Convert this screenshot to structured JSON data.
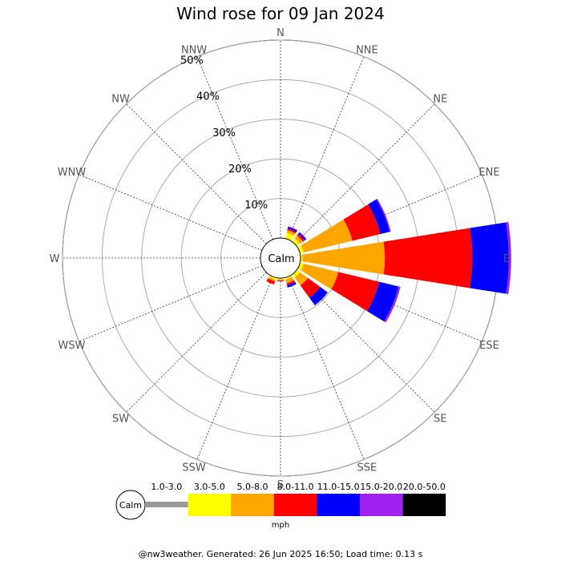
{
  "chart_data": {
    "type": "wind-rose",
    "title": "Wind rose for 09 Jan 2024",
    "directions": [
      "N",
      "NNE",
      "NE",
      "ENE",
      "E",
      "ESE",
      "SE",
      "SSE",
      "S",
      "SSW",
      "SW",
      "WSW",
      "W",
      "WNW",
      "NW",
      "NNW"
    ],
    "ring_values": [
      10,
      20,
      30,
      40,
      50
    ],
    "ring_labels": [
      "10%",
      "20%",
      "30%",
      "40%",
      "50%"
    ],
    "r_max": 50,
    "calm_label": "Calm",
    "speed_bins": [
      {
        "label": "1.0-3.0",
        "color": "#999999"
      },
      {
        "label": "3.0-5.0",
        "color": "#ffff00"
      },
      {
        "label": "5.0-8.0",
        "color": "#ffa500"
      },
      {
        "label": "8.0-11.0",
        "color": "#ff0000"
      },
      {
        "label": "11.0-15.0",
        "color": "#0000ff"
      },
      {
        "label": "15.0-20.0",
        "color": "#a020f0"
      },
      {
        "label": "20.0-50.0",
        "color": "#000000"
      }
    ],
    "cumulative_frequency_percent": {
      "N": [
        0,
        0.0,
        0.0,
        0.0,
        0.0,
        0.0,
        0.0
      ],
      "NNE": [
        0,
        1.5,
        2.2,
        2.6,
        3.0,
        3.2,
        3.2
      ],
      "NE": [
        0,
        1.0,
        2.0,
        2.5,
        2.9,
        3.1,
        3.1
      ],
      "ENE": [
        0,
        1.0,
        13.6,
        20.9,
        23.3,
        23.6,
        23.6
      ],
      "E": [
        0,
        0.5,
        21.3,
        43.4,
        52.6,
        53.2,
        53.2
      ],
      "ESE": [
        0,
        1.0,
        10.0,
        20.6,
        25.6,
        26.1,
        26.1
      ],
      "SE": [
        0,
        1.0,
        3.5,
        7.4,
        9.7,
        9.7,
        9.7
      ],
      "SSE": [
        0,
        0.5,
        1.5,
        2.0,
        2.6,
        2.6,
        2.6
      ],
      "S": [
        0,
        0.3,
        0.6,
        0.8,
        0.8,
        0.8,
        0.8
      ],
      "SSW": [
        0,
        0.5,
        1.0,
        1.8,
        1.8,
        1.8,
        1.8
      ],
      "SW": [
        0,
        0.0,
        0.0,
        0.0,
        0.0,
        0.0,
        0.0
      ],
      "WSW": [
        0,
        0.0,
        0.0,
        0.0,
        0.0,
        0.0,
        0.0
      ],
      "W": [
        0,
        0.0,
        0.0,
        0.0,
        0.0,
        0.0,
        0.0
      ],
      "WNW": [
        0,
        0.0,
        0.0,
        0.0,
        0.0,
        0.0,
        0.0
      ],
      "NW": [
        0,
        0.0,
        0.0,
        0.0,
        0.0,
        0.0,
        0.0
      ],
      "NNW": [
        0,
        0.0,
        0.0,
        0.0,
        0.0,
        0.0,
        0.0
      ]
    },
    "unit": "mph"
  },
  "footer": "@nw3weather. Generated: 26 Jun 2025 16:50; Load time: 0.13 s"
}
